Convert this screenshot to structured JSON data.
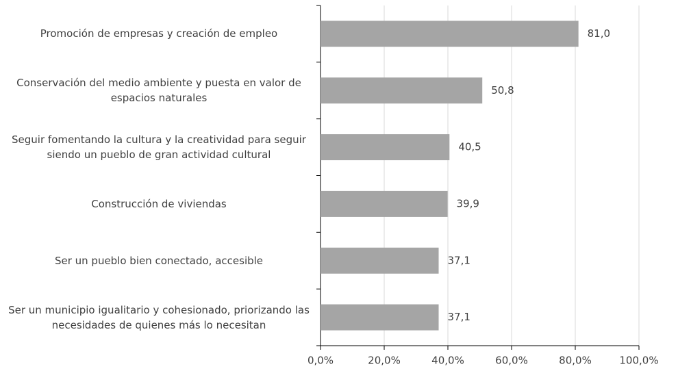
{
  "chart_data": {
    "type": "bar",
    "orientation": "horizontal",
    "categories": [
      "Promoción de empresas y creación de empleo",
      "Conservación del medio ambiente y puesta en valor de espacios naturales",
      "Seguir fomentando la cultura y la creatividad para seguir siendo un pueblo de gran actividad cultural",
      "Construcción de viviendas",
      "Ser un pueblo bien conectado, accesible",
      "Ser un municipio igualitario y cohesionado, priorizando las necesidades de quienes más lo necesitan"
    ],
    "values": [
      81.0,
      50.8,
      40.5,
      39.9,
      37.1,
      37.1
    ],
    "value_labels": [
      "81,0",
      "50,8",
      "40,5",
      "39,9",
      "37,1",
      "37,1"
    ],
    "color": "#a5a5a5",
    "xlim": [
      0,
      100
    ],
    "xticks": [
      {
        "value": 0,
        "label": "0,0%"
      },
      {
        "value": 20,
        "label": "20,0%"
      },
      {
        "value": 40,
        "label": "40,0%"
      },
      {
        "value": 60,
        "label": "60,0%"
      },
      {
        "value": 80,
        "label": "80,0%"
      },
      {
        "value": 100,
        "label": "100,0%"
      }
    ],
    "grid": true
  }
}
